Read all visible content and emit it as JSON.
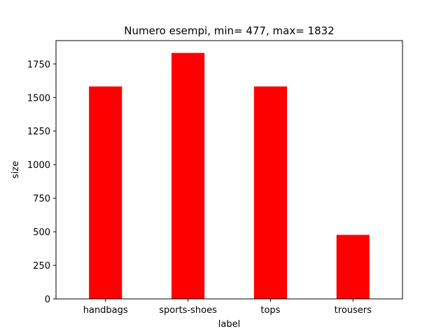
{
  "chart_data": {
    "type": "bar",
    "title": "Numero esempi, min= 477, max= 1832",
    "xlabel": "label",
    "ylabel": "size",
    "categories": [
      "handbags",
      "sports-shoes",
      "tops",
      "trousers"
    ],
    "values": [
      1582,
      1832,
      1582,
      477
    ],
    "ylim": [
      0,
      1923.6
    ],
    "yticks": [
      0,
      250,
      500,
      750,
      1000,
      1250,
      1500,
      1750
    ],
    "bar_color": "#ff0000",
    "grid": false,
    "legend": "none"
  }
}
